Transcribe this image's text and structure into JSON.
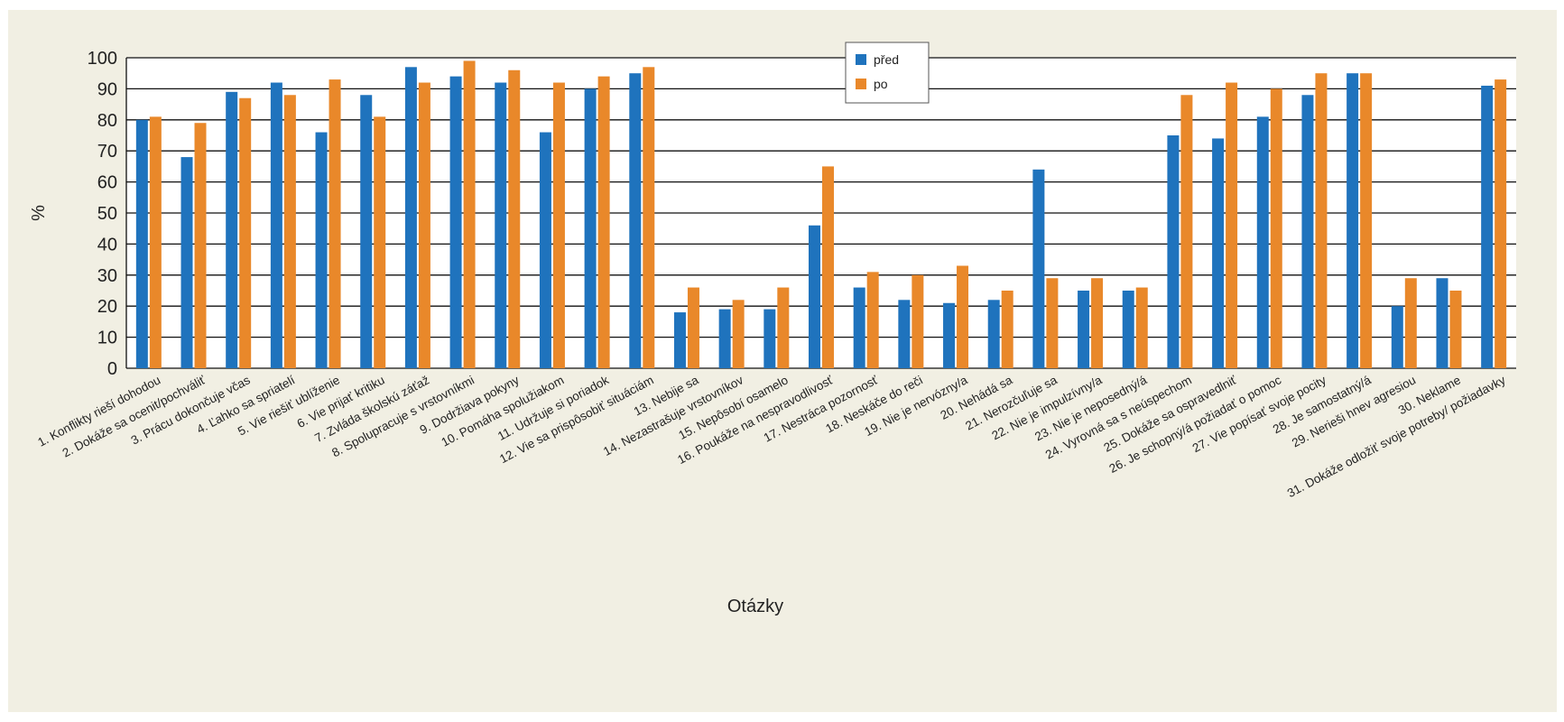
{
  "chart_data": {
    "type": "bar",
    "xlabel": "Otázky",
    "ylabel": "%",
    "ylim": [
      0,
      100
    ],
    "yticks": [
      0,
      10,
      20,
      30,
      40,
      50,
      60,
      70,
      80,
      90,
      100
    ],
    "grid": true,
    "legend_position": "top-center",
    "colors": {
      "před": "#1f73bd",
      "po": "#e9882a"
    },
    "categories": [
      "1. Konflikty rieší dohodou",
      "2. Dokáže sa ocenit/pochváliť",
      "3. Prácu dokončuje včas",
      "4. Ľahko sa spriatelí",
      "5. Vie riešiť ublíženie",
      "6. Vie prijať kritiku",
      "7. Zvláda školskú záťaž",
      "8. Spolupracuje s vrstovníkmi",
      "9. Dodržiava pokyny",
      "10. Pomáha spolužiakom",
      "11. Udržuje si poriadok",
      "12. Vie sa prispôsobiť situáciám",
      "13. Nebije sa",
      "14. Nezastrašuje vrstovníkov",
      "15. Nepôsobí osamelo",
      "16. Poukáže na nespravodlivosť",
      "17. Nestráca pozornosť",
      "18. Neskáče do reči",
      "19. Nie je nervózny/a",
      "20. Nehádá sa",
      "21. Nerozčuľuje sa",
      "22. Nie je impulzívny/a",
      "23. Nie je neposedný/á",
      "24. Vyrovná sa s neúspechom",
      "25. Dokáže sa ospravedlniť",
      "26. Je schopný/á požiadať o pomoc",
      "27. Vie popísať svoje pocity",
      "28. Je samostatný/á",
      "29. Nerieši hnev agresiou",
      "30. Neklame",
      "31. Dokáže odložiť svoje potreby/ požiadavky"
    ],
    "series": [
      {
        "name": "před",
        "values": [
          80,
          68,
          89,
          92,
          76,
          88,
          97,
          94,
          92,
          76,
          90,
          95,
          18,
          19,
          19,
          46,
          26,
          22,
          21,
          22,
          64,
          25,
          25,
          75,
          74,
          81,
          88,
          95,
          20,
          29,
          91
        ]
      },
      {
        "name": "po",
        "values": [
          81,
          79,
          87,
          88,
          93,
          81,
          92,
          99,
          96,
          92,
          94,
          97,
          26,
          22,
          26,
          65,
          31,
          30,
          33,
          25,
          29,
          29,
          26,
          88,
          92,
          90,
          95,
          95,
          29,
          25,
          93
        ]
      }
    ]
  }
}
